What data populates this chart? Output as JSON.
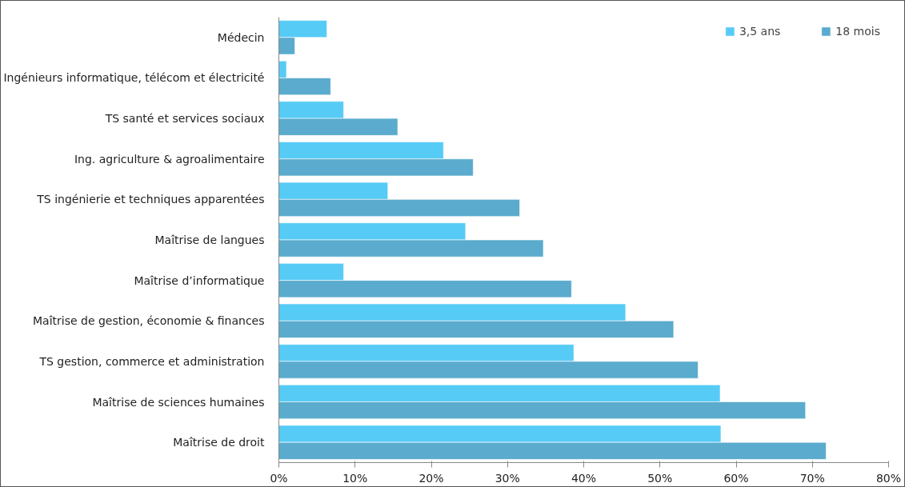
{
  "chart_data": {
    "type": "bar",
    "orientation": "horizontal",
    "categories": [
      "Médecin",
      "Ingénieurs informatique, télécom et électricité",
      "TS santé et services sociaux",
      "Ing. agriculture & agroalimentaire",
      "TS ingénierie et techniques apparentées",
      "Maîtrise de langues",
      "Maîtrise d’informatique",
      "Maîtrise de gestion, économie & finances",
      "TS gestion, commerce et administration",
      "Maîtrise de sciences humaines",
      "Maîtrise de droit"
    ],
    "series": [
      {
        "name": "3,5 ans",
        "color": "#56cbf5",
        "values": [
          6.3,
          1.0,
          8.5,
          21.6,
          14.3,
          24.5,
          8.5,
          45.5,
          38.7,
          57.9,
          58.0
        ]
      },
      {
        "name": "18 mois",
        "color": "#5aabcd",
        "values": [
          2.1,
          6.8,
          15.6,
          25.5,
          31.6,
          34.7,
          38.4,
          51.8,
          55.0,
          69.1,
          71.8
        ]
      }
    ],
    "xlim": [
      0,
      80
    ],
    "xticks": [
      {
        "value": 0,
        "label": "0%"
      },
      {
        "value": 10,
        "label": "10%"
      },
      {
        "value": 20,
        "label": "20%"
      },
      {
        "value": 30,
        "label": "30%"
      },
      {
        "value": 40,
        "label": "40%"
      },
      {
        "value": 50,
        "label": "50%"
      },
      {
        "value": 60,
        "label": "60%"
      },
      {
        "value": 70,
        "label": "70%"
      },
      {
        "value": 80,
        "label": "80%"
      }
    ],
    "legend": "top right",
    "grid": false
  }
}
